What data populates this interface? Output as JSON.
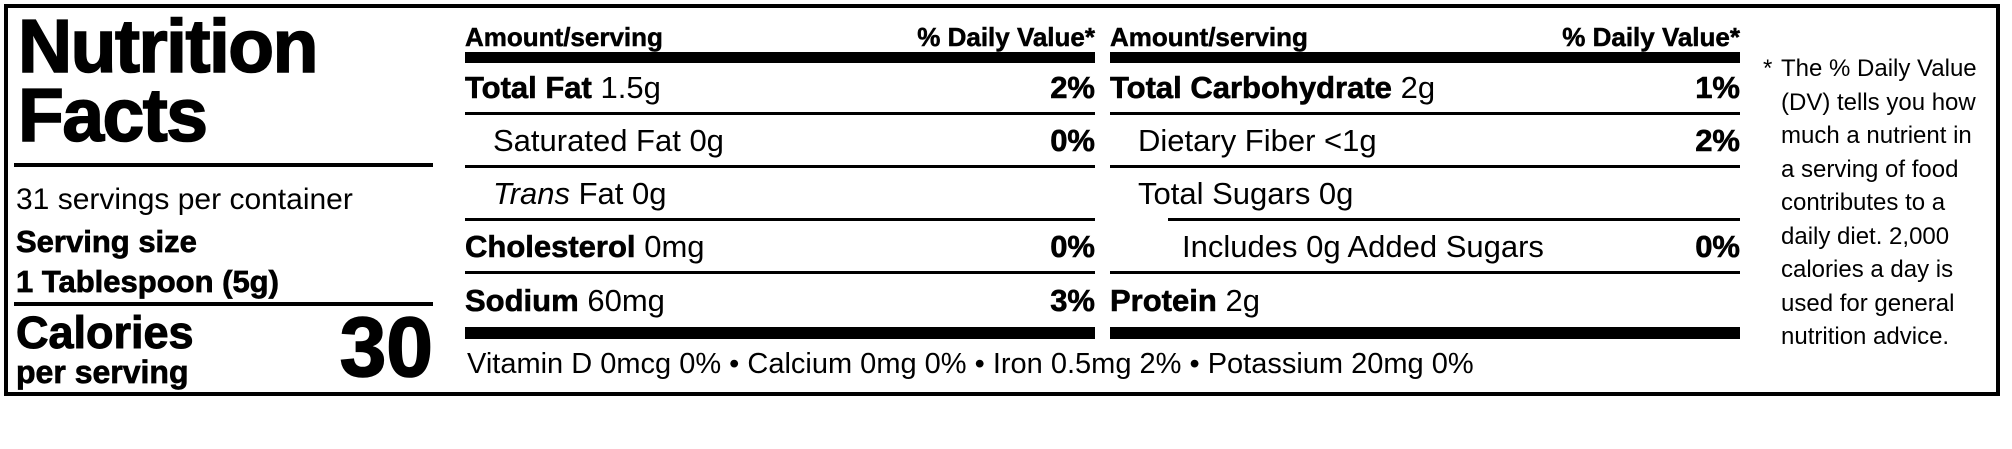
{
  "title": {
    "line1": "Nutrition",
    "line2": "Facts"
  },
  "serving": {
    "servings_per_container": "31 servings per container",
    "serving_size_label": "Serving size",
    "serving_size_value": "1 Tablespoon (5g)"
  },
  "calories": {
    "label": "Calories",
    "sublabel": "per serving",
    "value": "30"
  },
  "col1": {
    "header": {
      "amount": "Amount/serving",
      "dv": "% Daily Value*"
    },
    "rows": [
      {
        "name": "Total Fat",
        "amount": "1.5g",
        "dv": "2%"
      },
      {
        "name": "Saturated Fat 0g",
        "dv": "0%"
      },
      {
        "name_italic": "Trans",
        "amount": "Fat 0g",
        "dv": ""
      },
      {
        "name": "Cholesterol",
        "amount": "0mg",
        "dv": "0%"
      },
      {
        "name": "Sodium",
        "amount": "60mg",
        "dv": "3%"
      }
    ]
  },
  "col2": {
    "header": {
      "amount": "Amount/serving",
      "dv": "% Daily Value*"
    },
    "rows": [
      {
        "name": "Total Carbohydrate",
        "amount": "2g",
        "dv": "1%"
      },
      {
        "name": "Dietary Fiber <1g",
        "dv": "2%"
      },
      {
        "name": "Total Sugars 0g",
        "dv": ""
      },
      {
        "name": "Includes 0g Added Sugars",
        "dv": "0%"
      },
      {
        "name": "Protein",
        "amount": "2g",
        "dv": ""
      }
    ]
  },
  "micronutrients": "Vitamin D 0mcg 0% • Calcium 0mg 0% • Iron 0.5mg 2% • Potassium 20mg 0%",
  "footnote": {
    "marker": "*",
    "text": "The % Daily Value\n(DV) tells you how\nmuch a nutrient in\na serving of food\ncontributes to a\ndaily diet. 2,000\ncalories a day is\nused for general\nnutrition advice."
  },
  "colors": {
    "ink": "#000000",
    "paper": "#ffffff"
  }
}
